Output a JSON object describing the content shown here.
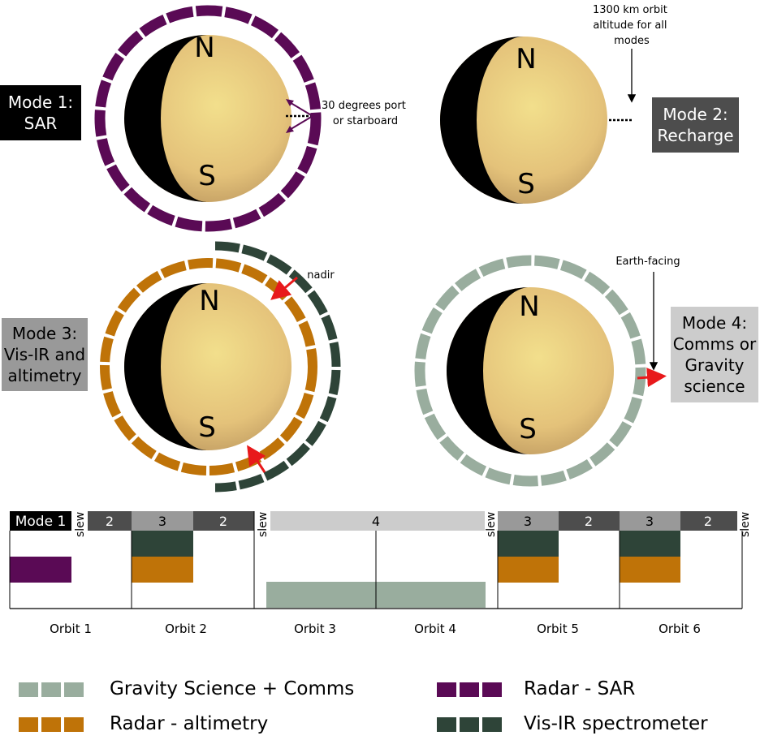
{
  "modes": {
    "mode1": {
      "line1": "Mode 1:",
      "line2": "SAR"
    },
    "mode2": {
      "line1": "Mode 2:",
      "line2": "Recharge"
    },
    "mode3": {
      "line1": "Mode 3:",
      "line2": "Vis-IR and",
      "line3": "altimetry"
    },
    "mode4": {
      "line1": "Mode 4:",
      "line2": "Comms or",
      "line3": "Gravity",
      "line4": "science"
    }
  },
  "pole_labels": {
    "north": "N",
    "south": "S"
  },
  "annotations": {
    "pointing": {
      "line1": "30 degrees port",
      "line2": "or starboard"
    },
    "altitude": {
      "line1": "1300 km orbit",
      "line2": "altitude for all",
      "line3": "modes"
    },
    "nadir": "nadir",
    "earth_facing": "Earth-facing"
  },
  "timeline": {
    "top_segments": {
      "mode1": "Mode 1",
      "slew": "slew",
      "s2": "2",
      "s3": "3",
      "s4": "4"
    },
    "orbits": [
      "Orbit 1",
      "Orbit 2",
      "Orbit 3",
      "Orbit 4",
      "Orbit 5",
      "Orbit 6"
    ]
  },
  "legend": [
    {
      "label": "Gravity Science + Comms",
      "color": "#99ad9e"
    },
    {
      "label": "Radar - altimetry",
      "color": "#bf7308"
    },
    {
      "label": "Radar - SAR",
      "color": "#5a0a55"
    },
    {
      "label": "Vis-IR spectrometer",
      "color": "#2e4438"
    }
  ],
  "colors": {
    "sar": "#5a0a55",
    "altimetry": "#bf7308",
    "visir": "#2e4438",
    "gravity": "#99ad9e",
    "mode1_box": "#000000",
    "mode2_box": "#4d4d4d",
    "mode3_box": "#999999",
    "mode4_box": "#cccccc",
    "recharge_bar": "#4d4d4d",
    "visir_bar": "#999999",
    "comms_bar": "#cccccc",
    "arrow_red": "#e8191b"
  }
}
